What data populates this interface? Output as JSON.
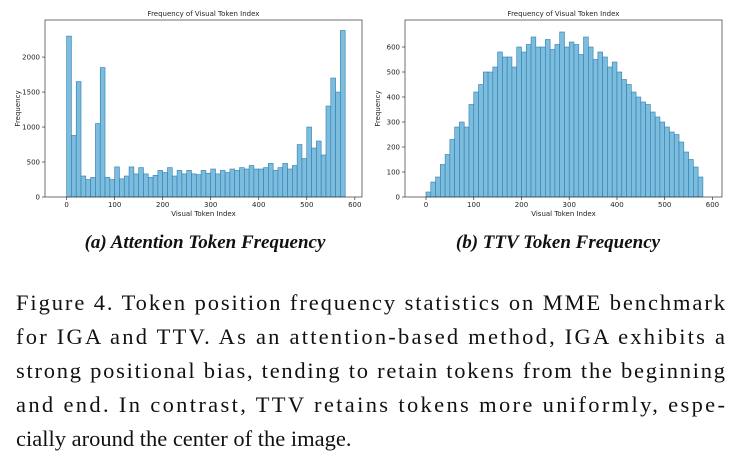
{
  "chart_data": [
    {
      "type": "histogram",
      "title": "Frequency of Visual Token Index",
      "xlabel": "Visual Token Index",
      "ylabel": "Frequency",
      "bins": [
        0,
        10,
        20,
        30,
        40,
        50,
        60,
        70,
        80,
        90,
        100,
        110,
        120,
        130,
        140,
        150,
        160,
        170,
        180,
        190,
        200,
        210,
        220,
        230,
        240,
        250,
        260,
        270,
        280,
        290,
        300,
        310,
        320,
        330,
        340,
        350,
        360,
        370,
        380,
        390,
        400,
        410,
        420,
        430,
        440,
        450,
        460,
        470,
        480,
        490,
        500,
        510,
        520,
        530,
        540,
        550,
        560,
        570,
        580
      ],
      "values": [
        2300,
        880,
        1650,
        300,
        250,
        280,
        1050,
        1850,
        280,
        250,
        430,
        260,
        300,
        430,
        330,
        420,
        330,
        280,
        310,
        380,
        350,
        420,
        300,
        380,
        330,
        380,
        330,
        320,
        380,
        340,
        400,
        330,
        380,
        350,
        400,
        380,
        420,
        400,
        450,
        400,
        400,
        420,
        480,
        380,
        420,
        480,
        400,
        450,
        750,
        550,
        1000,
        700,
        800,
        600,
        1300,
        1700,
        1500,
        2380
      ],
      "color": "#7cbcdc",
      "edgecolor": "#2e7db3",
      "xlim": [
        -45,
        615
      ],
      "xticks": [
        0,
        100,
        200,
        300,
        400,
        500,
        600
      ],
      "ylim": [
        0,
        2530
      ],
      "yticks": [
        0,
        500,
        1000,
        1500,
        2000
      ],
      "caption": "(a) Attention Token Frequency"
    },
    {
      "type": "histogram",
      "title": "Frequency of Visual Token Index",
      "xlabel": "Visual Token Index",
      "ylabel": "Frequency",
      "bins": [
        0,
        10,
        20,
        30,
        40,
        50,
        60,
        70,
        80,
        90,
        100,
        110,
        120,
        130,
        140,
        150,
        160,
        170,
        180,
        190,
        200,
        210,
        220,
        230,
        240,
        250,
        260,
        270,
        280,
        290,
        300,
        310,
        320,
        330,
        340,
        350,
        360,
        370,
        380,
        390,
        400,
        410,
        420,
        430,
        440,
        450,
        460,
        470,
        480,
        490,
        500,
        510,
        520,
        530,
        540,
        550,
        560,
        570,
        580
      ],
      "values": [
        20,
        60,
        80,
        130,
        170,
        230,
        280,
        300,
        280,
        370,
        420,
        450,
        500,
        500,
        520,
        580,
        560,
        560,
        520,
        600,
        580,
        610,
        640,
        600,
        600,
        630,
        590,
        610,
        660,
        600,
        620,
        610,
        570,
        640,
        600,
        550,
        580,
        560,
        520,
        540,
        500,
        470,
        450,
        420,
        400,
        380,
        370,
        340,
        320,
        300,
        280,
        260,
        250,
        220,
        180,
        150,
        120,
        80
      ],
      "color": "#7cbcdc",
      "edgecolor": "#2e7db3",
      "xlim": [
        -44,
        620
      ],
      "xticks": [
        0,
        100,
        200,
        300,
        400,
        500,
        600
      ],
      "ylim": [
        0,
        708
      ],
      "yticks": [
        0,
        100,
        200,
        300,
        400,
        500,
        600
      ],
      "caption": "(b) TTV Token Frequency"
    }
  ],
  "caption": {
    "lines": [
      "Figure 4. Token position frequency statistics on MME benchmark",
      "for IGA and TTV. As an attention-based method, IGA exhibits a",
      "strong positional bias, tending to retain tokens from the beginning",
      "and end.  In contrast, TTV retains tokens more uniformly, espe-",
      "cially around the center of the image."
    ]
  }
}
